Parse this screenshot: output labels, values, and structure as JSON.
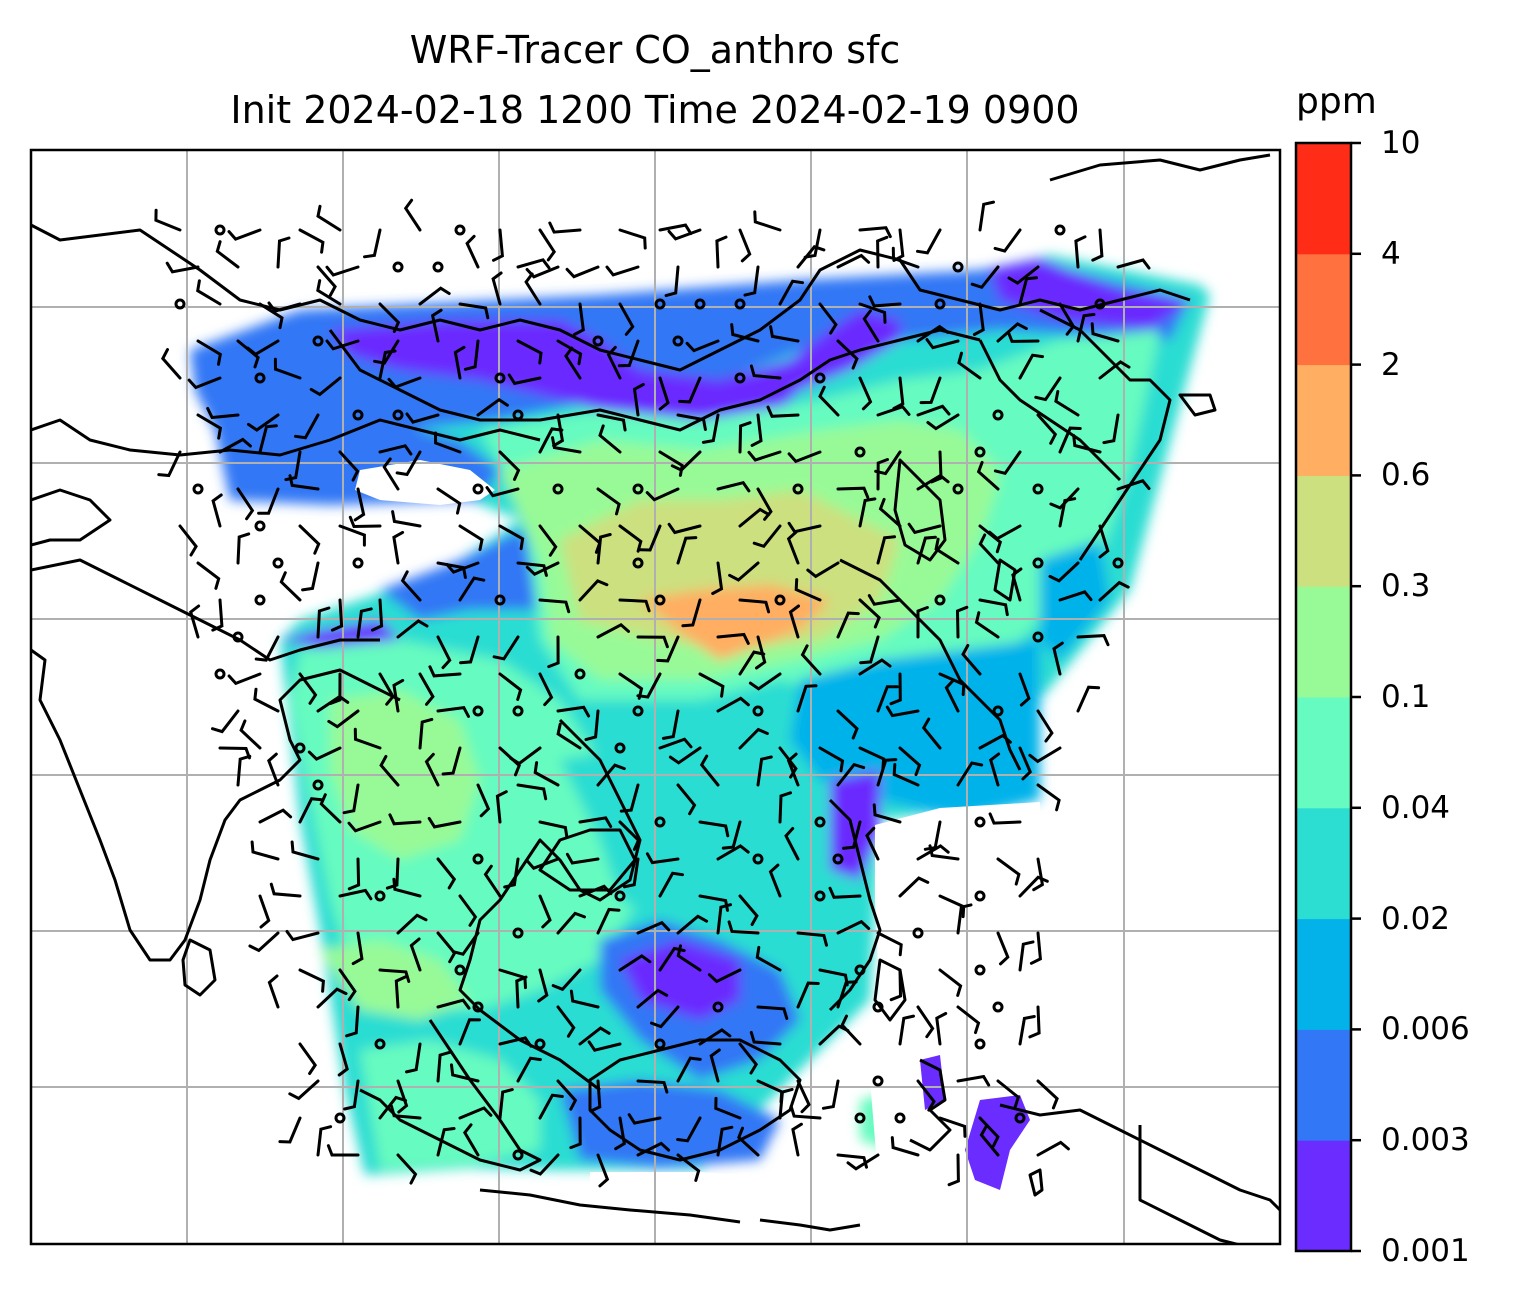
{
  "title": {
    "line1": "WRF-Tracer CO_anthro sfc",
    "line2": "Init 2024-02-18 1200 Time 2024-02-19 0900"
  },
  "colorbar": {
    "unit": "ppm",
    "levels": [
      "0.001",
      "0.003",
      "0.006",
      "0.02",
      "0.04",
      "0.1",
      "0.3",
      "0.6",
      "2",
      "4",
      "10"
    ],
    "colors": [
      "#6a2cff",
      "#3277f5",
      "#04b2ea",
      "#2cddd2",
      "#66fbc0",
      "#98fa97",
      "#cce07f",
      "#ffae62",
      "#ff713e",
      "#ff2d18"
    ]
  },
  "map": {
    "field": "CO_anthro",
    "level": "sfc",
    "gridlines": true,
    "coastline_color": "#000000",
    "gridline_color": "#b0b0b0",
    "overlay": "wind barbs"
  }
}
